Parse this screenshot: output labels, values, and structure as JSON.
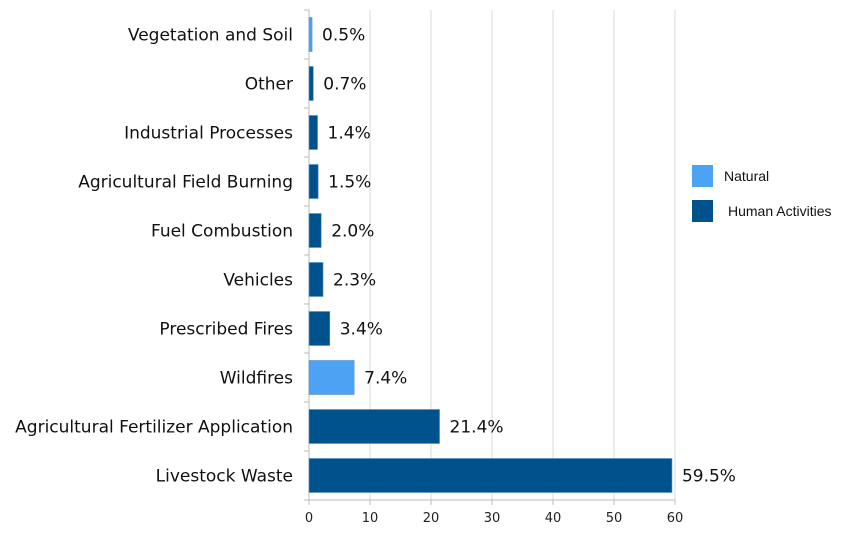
{
  "chart_data": {
    "type": "bar",
    "orientation": "horizontal",
    "categories": [
      "Vegetation and Soil",
      "Other",
      "Industrial Processes",
      "Agricultural Field Burning",
      "Fuel Combustion",
      "Vehicles",
      "Prescribed Fires",
      "Wildfires",
      "Agricultural Fertilizer Application",
      "Livestock Waste"
    ],
    "values": [
      0.5,
      0.7,
      1.4,
      1.5,
      2.0,
      2.3,
      3.4,
      7.4,
      21.4,
      59.5
    ],
    "data_labels": [
      "0.5%",
      "0.7%",
      "1.4%",
      "1.5%",
      "2.0%",
      "2.3%",
      "3.4%",
      "7.4%",
      "21.4%",
      "59.5%"
    ],
    "groups": [
      "Natural",
      "Human Activities",
      "Human Activities",
      "Human Activities",
      "Human Activities",
      "Human Activities",
      "Human Activities",
      "Natural",
      "Human Activities",
      "Human Activities"
    ],
    "legend": [
      {
        "name": "Natural",
        "color": "#4ca3f4"
      },
      {
        "name": "Human Activities",
        "color": "#00528c"
      }
    ],
    "legend_position": "right",
    "xlim": [
      0,
      60
    ],
    "xticks": [
      "0",
      "10",
      "20",
      "30",
      "40",
      "50",
      "60"
    ],
    "grid": true,
    "title": "",
    "xlabel": "",
    "ylabel": ""
  }
}
